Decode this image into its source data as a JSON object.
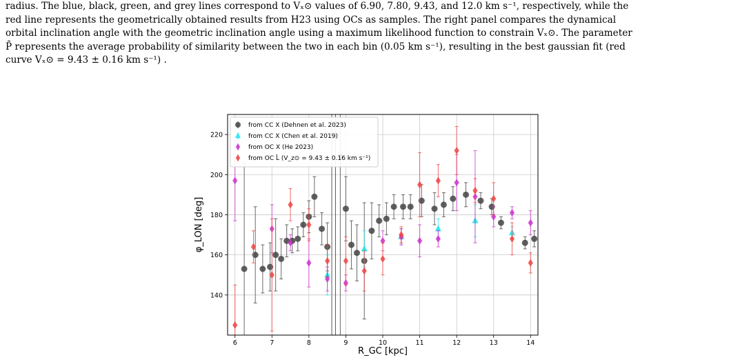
{
  "caption": {
    "lines": [
      "radius. The blue, black, green, and grey lines correspond to Vₓ⊙ values of 6.90, 7.80, 9.43, and 12.0 km s⁻¹, respectively, while the",
      "red line represents the geometrically obtained results from H23 using OCs as samples. The right panel compares the dynamical",
      "orbital inclination angle with the geometric inclination angle using a maximum likelihood function to constrain Vₓ⊙. The parameter",
      "P̄ represents the average probability of similarity between the two in each bin (0.05 km s⁻¹), resulting in the best gaussian fit (red",
      "curve Vₓ⊙ = 9.43 ± 0.16 km s⁻¹) ."
    ]
  },
  "chart_data": {
    "type": "scatter",
    "xlabel": "R_GC [kpc]",
    "ylabel": "φ_LON [deg]",
    "xlim": [
      5.8,
      14.2
    ],
    "ylim": [
      120,
      230
    ],
    "xticks": [
      6,
      7,
      8,
      9,
      10,
      11,
      12,
      13,
      14
    ],
    "yticks": [
      140,
      160,
      180,
      200,
      220
    ],
    "grid": true,
    "legend_position": "top-left",
    "series": [
      {
        "name": "from CC X (Dehnen et al. 2023)",
        "color": "#444444",
        "marker": "circle",
        "points": [
          {
            "x": 6.25,
            "y": 153,
            "err": 53
          },
          {
            "x": 6.55,
            "y": 160,
            "err": 24
          },
          {
            "x": 6.75,
            "y": 153,
            "err": 12
          },
          {
            "x": 6.95,
            "y": 154,
            "err": 12
          },
          {
            "x": 7.1,
            "y": 160,
            "err": 18
          },
          {
            "x": 7.25,
            "y": 158,
            "err": 10
          },
          {
            "x": 7.4,
            "y": 167,
            "err": 8
          },
          {
            "x": 7.55,
            "y": 167,
            "err": 6
          },
          {
            "x": 7.7,
            "y": 168,
            "err": 6
          },
          {
            "x": 7.85,
            "y": 175,
            "err": 6
          },
          {
            "x": 8.0,
            "y": 179,
            "err": 8
          },
          {
            "x": 8.15,
            "y": 189,
            "err": 10
          },
          {
            "x": 8.35,
            "y": 173,
            "err": 8
          },
          {
            "x": 8.5,
            "y": 164,
            "err": 12
          },
          {
            "x": 8.85,
            "y": 209,
            "err": 100
          },
          {
            "x": 9.0,
            "y": 183,
            "err": 16
          },
          {
            "x": 9.15,
            "y": 165,
            "err": 12
          },
          {
            "x": 9.3,
            "y": 161,
            "err": 14
          },
          {
            "x": 9.5,
            "y": 157,
            "err": 29
          },
          {
            "x": 9.7,
            "y": 172,
            "err": 14
          },
          {
            "x": 9.9,
            "y": 177,
            "err": 8
          },
          {
            "x": 10.1,
            "y": 178,
            "err": 8
          },
          {
            "x": 10.3,
            "y": 184,
            "err": 6
          },
          {
            "x": 10.55,
            "y": 184,
            "err": 6
          },
          {
            "x": 10.75,
            "y": 184,
            "err": 6
          },
          {
            "x": 11.05,
            "y": 187,
            "err": 8
          },
          {
            "x": 11.4,
            "y": 183,
            "err": 8
          },
          {
            "x": 11.65,
            "y": 185,
            "err": 6
          },
          {
            "x": 11.9,
            "y": 188,
            "err": 6
          },
          {
            "x": 12.25,
            "y": 190,
            "err": 6
          },
          {
            "x": 12.65,
            "y": 187,
            "err": 4
          },
          {
            "x": 12.95,
            "y": 184,
            "err": 4
          },
          {
            "x": 13.2,
            "y": 176,
            "err": 3
          },
          {
            "x": 13.85,
            "y": 166,
            "err": 3
          },
          {
            "x": 14.1,
            "y": 168,
            "err": 4
          }
        ]
      },
      {
        "name": "from CC X (Chen et al. 2019)",
        "color": "#22e5ee",
        "marker": "triangle",
        "points": [
          {
            "x": 8.5,
            "y": 150,
            "err": 10
          },
          {
            "x": 9.5,
            "y": 163,
            "err": 9
          },
          {
            "x": 10.5,
            "y": 169,
            "err": 4
          },
          {
            "x": 11.5,
            "y": 173,
            "err": 5
          },
          {
            "x": 12.5,
            "y": 177,
            "err": 8
          },
          {
            "x": 13.5,
            "y": 171,
            "err": 3
          }
        ]
      },
      {
        "name": "from OC X (He 2023)",
        "color": "#cc33cc",
        "marker": "diamond",
        "points": [
          {
            "x": 6.0,
            "y": 197,
            "err": 20
          },
          {
            "x": 7.0,
            "y": 173,
            "err": 12
          },
          {
            "x": 7.5,
            "y": 166,
            "err": 4
          },
          {
            "x": 8.0,
            "y": 156,
            "err": 12
          },
          {
            "x": 8.5,
            "y": 148,
            "err": 6
          },
          {
            "x": 9.0,
            "y": 146,
            "err": 4
          },
          {
            "x": 10.0,
            "y": 167,
            "err": 5
          },
          {
            "x": 10.5,
            "y": 169,
            "err": 4
          },
          {
            "x": 11.0,
            "y": 167,
            "err": 8
          },
          {
            "x": 11.5,
            "y": 168,
            "err": 4
          },
          {
            "x": 12.0,
            "y": 196,
            "err": 14
          },
          {
            "x": 12.5,
            "y": 189,
            "err": 23
          },
          {
            "x": 13.0,
            "y": 179,
            "err": 5
          },
          {
            "x": 13.5,
            "y": 181,
            "err": 3
          },
          {
            "x": 14.0,
            "y": 176,
            "err": 6
          }
        ]
      },
      {
        "name": "from OC L̂ (V_z⊙ = 9.43 ± 0.16 km s⁻¹)",
        "color": "#ee4444",
        "marker": "diamond",
        "points": [
          {
            "x": 6.0,
            "y": 125,
            "err": 20
          },
          {
            "x": 6.5,
            "y": 164,
            "err": 8
          },
          {
            "x": 7.0,
            "y": 150,
            "err": 28
          },
          {
            "x": 7.5,
            "y": 185,
            "err": 8
          },
          {
            "x": 8.0,
            "y": 175,
            "err": 8
          },
          {
            "x": 8.5,
            "y": 157,
            "err": 8
          },
          {
            "x": 9.0,
            "y": 157,
            "err": 12
          },
          {
            "x": 9.5,
            "y": 152,
            "err": 10
          },
          {
            "x": 10.0,
            "y": 158,
            "err": 8
          },
          {
            "x": 10.5,
            "y": 170,
            "err": 4
          },
          {
            "x": 11.0,
            "y": 195,
            "err": 16
          },
          {
            "x": 11.5,
            "y": 197,
            "err": 8
          },
          {
            "x": 12.0,
            "y": 212,
            "err": 12
          },
          {
            "x": 12.5,
            "y": 192,
            "err": 6
          },
          {
            "x": 13.0,
            "y": 188,
            "err": 8
          },
          {
            "x": 13.5,
            "y": 168,
            "err": 8
          },
          {
            "x": 14.0,
            "y": 156,
            "err": 5
          }
        ]
      }
    ],
    "legend": [
      {
        "label": "from CC X (Dehnen et al. 2023)",
        "color": "#444444",
        "marker": "circle"
      },
      {
        "label": "from CC X (Chen et al. 2019)",
        "color": "#22e5ee",
        "marker": "triangle"
      },
      {
        "label": "from OC X (He 2023)",
        "color": "#cc33cc",
        "marker": "diamond"
      },
      {
        "label": "from OC L̂ (V_z⊙ = 9.43 ± 0.16 km s⁻¹)",
        "color": "#ee4444",
        "marker": "diamond"
      }
    ]
  }
}
